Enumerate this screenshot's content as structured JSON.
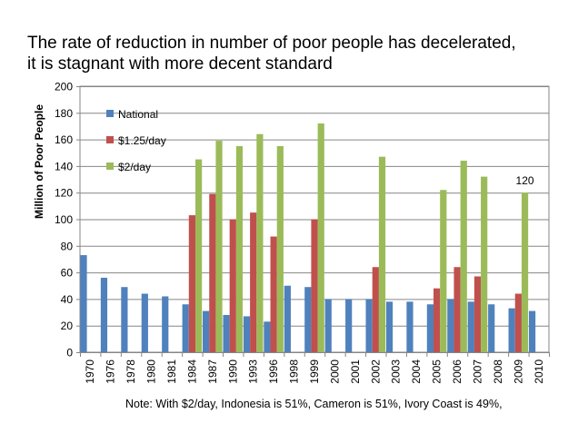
{
  "title_lines": [
    "The rate of reduction in number of poor people has decelerated,",
    "it is stagnant with more decent standard"
  ],
  "note": "Note: With $2/day, Indonesia  is 51%, Cameron is 51%, Ivory Coast is 49%,",
  "annotation": "120",
  "colors": {
    "National": "#4f81bd",
    "$1.25/day": "#c0504d",
    "$2/day": "#9bbb59"
  },
  "chart_data": {
    "type": "bar",
    "title": "The rate of reduction in number of poor people has decelerated, it is stagnant with more decent standard",
    "xlabel": "",
    "ylabel": "Million of Poor People",
    "ylim": [
      0,
      200
    ],
    "yticks": [
      0,
      20,
      40,
      60,
      80,
      100,
      120,
      140,
      160,
      180,
      200
    ],
    "grid": true,
    "legend_position": "top-left",
    "categories": [
      "1970",
      "1976",
      "1978",
      "1980",
      "1981",
      "1984",
      "1987",
      "1990",
      "1993",
      "1996",
      "1998",
      "1999",
      "2000",
      "2001",
      "2002",
      "2003",
      "2004",
      "2005",
      "2006",
      "2007",
      "2008",
      "2009",
      "2010"
    ],
    "series": [
      {
        "name": "National",
        "values": [
          73,
          56,
          49,
          44,
          42,
          36,
          31,
          28,
          27,
          23,
          50,
          49,
          40,
          40,
          40,
          38,
          38,
          36,
          40,
          38,
          36,
          33,
          31
        ]
      },
      {
        "name": "$1.25/day",
        "values": [
          null,
          null,
          null,
          null,
          null,
          103,
          119,
          100,
          105,
          87,
          null,
          100,
          null,
          null,
          64,
          null,
          null,
          48,
          64,
          57,
          null,
          44,
          null
        ]
      },
      {
        "name": "$2/day",
        "values": [
          null,
          null,
          null,
          null,
          null,
          145,
          159,
          155,
          164,
          155,
          null,
          172,
          null,
          null,
          147,
          null,
          null,
          122,
          144,
          132,
          null,
          120,
          null
        ]
      }
    ]
  }
}
